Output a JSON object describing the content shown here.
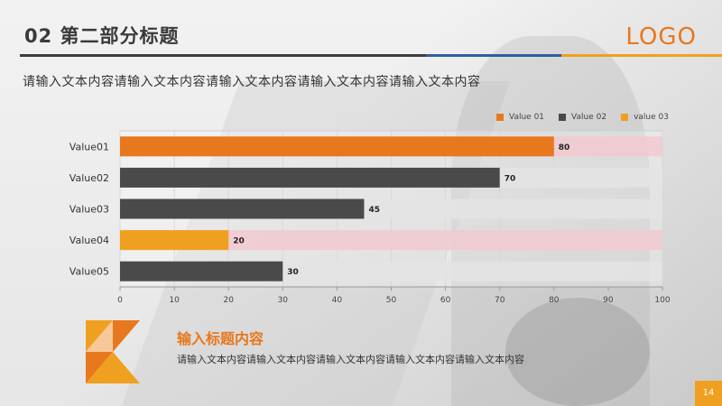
{
  "header": {
    "title": "02  第二部分标题",
    "logo": "LOGO"
  },
  "subtitle": "请输入文本内容请输入文本内容请输入文本内容请输入文本内容请输入文本内容",
  "colors": {
    "orange": "#e8781d",
    "dark": "#4a4a4a",
    "yellow": "#f0a020",
    "pink_track": "#f1c9cf",
    "gray_track": "#e4e4e4"
  },
  "chart_data": {
    "type": "bar",
    "orientation": "horizontal",
    "categories": [
      "Value01",
      "Value02",
      "Value03",
      "Value04",
      "Value05"
    ],
    "values": [
      80,
      70,
      45,
      20,
      30
    ],
    "value_labels": [
      "80",
      "70",
      "45",
      "20",
      "30"
    ],
    "series_colors": [
      "#e8781d",
      "#4a4a4a",
      "#4a4a4a",
      "#f0a020",
      "#4a4a4a"
    ],
    "track_colors": [
      "#f1c9cf",
      "#e4e4e4",
      "#e4e4e4",
      "#f1c9cf",
      "#e4e4e4"
    ],
    "xlim": [
      0,
      100
    ],
    "xticks": [
      "0",
      "10",
      "20",
      "30",
      "40",
      "50",
      "60",
      "70",
      "80",
      "90",
      "100"
    ],
    "legend": [
      {
        "label": "Value 01",
        "color": "#e8781d"
      },
      {
        "label": "Value 02",
        "color": "#4a4a4a"
      },
      {
        "label": "value 03",
        "color": "#f0a020"
      }
    ],
    "legend_position": "top-right",
    "grid": true
  },
  "footer": {
    "title": "输入标题内容",
    "body": "请输入文本内容请输入文本内容请输入文本内容请输入文本内容请输入文本内容"
  },
  "page_number": "14"
}
